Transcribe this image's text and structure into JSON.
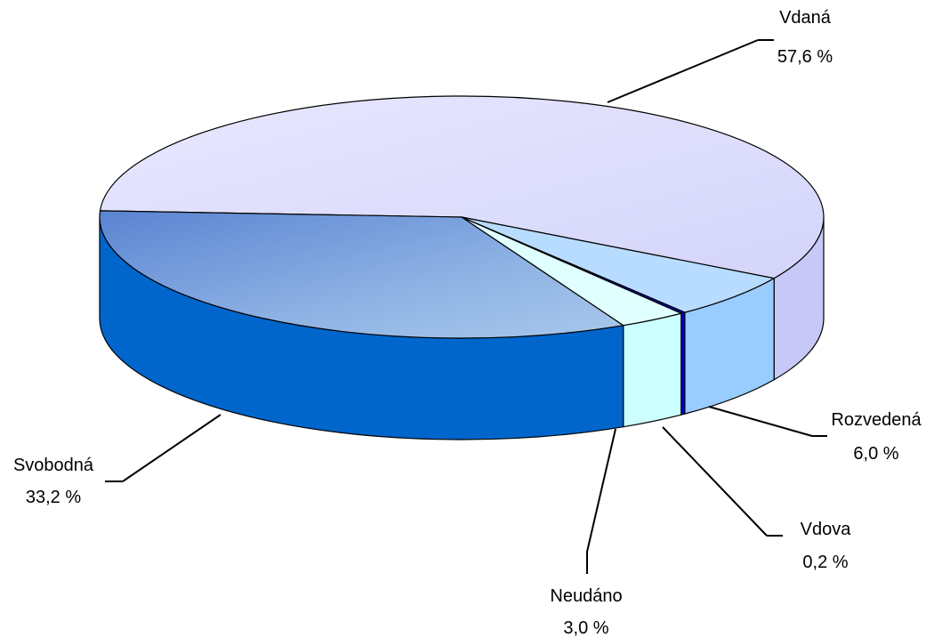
{
  "chart_data": {
    "type": "pie",
    "title": "",
    "slices": [
      {
        "label": "Vdaná",
        "value": 57.6,
        "value_label": "57,6 %",
        "color": "#DDDDFF",
        "side_color": "#C8C8F8"
      },
      {
        "label": "Rozvedená",
        "value": 6.0,
        "value_label": "6,0 %",
        "color": "#B8DCFF",
        "side_color": "#99CCFF"
      },
      {
        "label": "Vdova",
        "value": 0.2,
        "value_label": "0,2 %",
        "color": "#0000CC",
        "side_color": "#0000EE"
      },
      {
        "label": "Neudáno",
        "value": 3.0,
        "value_label": "3,0 %",
        "color": "#E0FFFF",
        "side_color": "#CCFFFF"
      },
      {
        "label": "Svobodná",
        "value": 33.2,
        "value_label": "33,2 %",
        "color": "#7FA8E0",
        "side_color": "#0066CC"
      }
    ],
    "legend": "none",
    "style": "3d-pie"
  }
}
